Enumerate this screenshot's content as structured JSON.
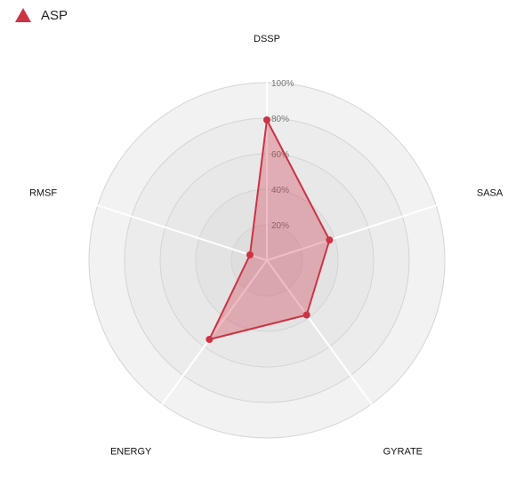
{
  "chart_data": {
    "type": "radar",
    "axes": [
      "DSSP",
      "SASA",
      "GYRATE",
      "ENERGY",
      "RMSF"
    ],
    "series": [
      {
        "name": "ASP",
        "values": [
          79,
          37,
          38,
          55,
          10
        ],
        "color": "#cc3344"
      }
    ],
    "range": [
      0,
      100
    ],
    "ticks": [
      20,
      40,
      60,
      80,
      100
    ],
    "tick_labels": [
      "20%",
      "40%",
      "60%",
      "80%",
      "100%"
    ],
    "legend_position": "top-left",
    "grid": true
  }
}
